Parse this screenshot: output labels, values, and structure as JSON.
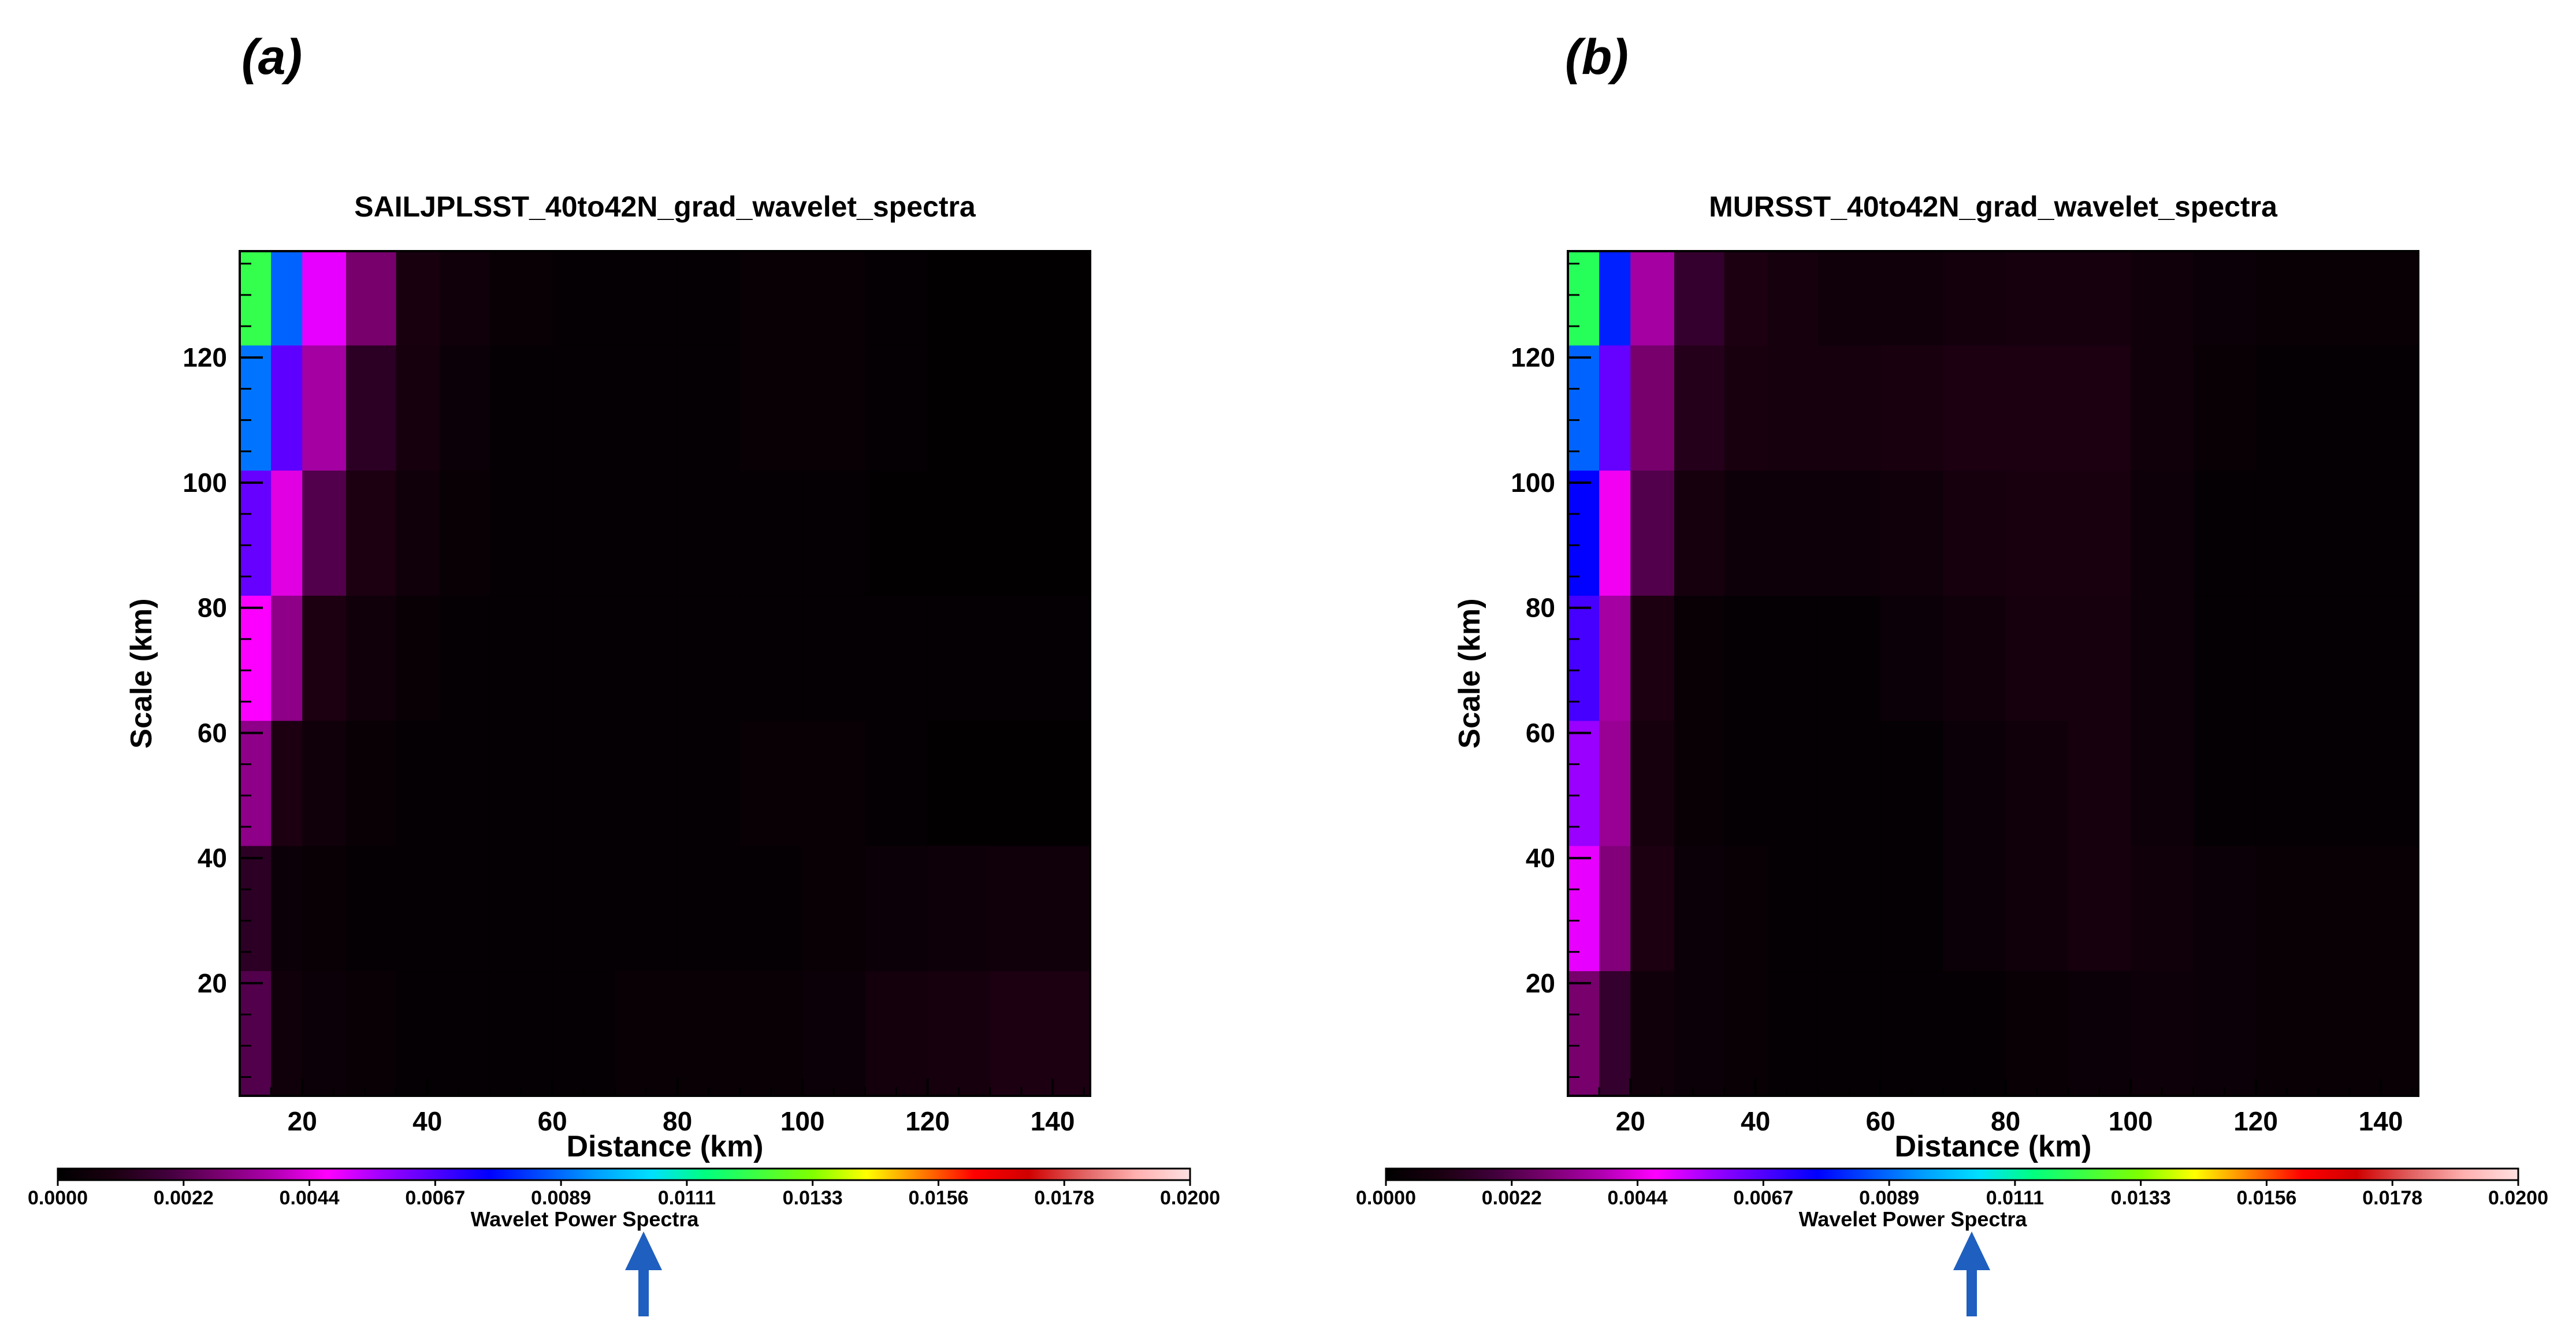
{
  "colorbar": {
    "stops": [
      "#000000",
      "#1a0010",
      "#40003a",
      "#7a0070",
      "#b000b0",
      "#ff00ff",
      "#a000ff",
      "#5000ff",
      "#0000ff",
      "#0050ff",
      "#00a0ff",
      "#00e0ff",
      "#00ff80",
      "#40ff40",
      "#80ff00",
      "#ffff00",
      "#ff8000",
      "#ff0000",
      "#d00000",
      "#e06060",
      "#ffb0b0",
      "#ffe0e0"
    ],
    "vmin": 0.0,
    "vmax": 0.02,
    "tick_labels": [
      "0.0000",
      "0.0022",
      "0.0044",
      "0.0067",
      "0.0089",
      "0.0111",
      "0.0133",
      "0.0156",
      "0.0178",
      "0.0200"
    ],
    "label": "Wavelet Power Spectra"
  },
  "arrow_color": "#1f5fbf",
  "chart_data": [
    {
      "panel_label": "(a)",
      "type": "heatmap",
      "title": "SAILJPLSST_40to42N_grad_wavelet_spectra",
      "xlabel": "Distance (km)",
      "ylabel": "Scale (km)",
      "xlim": [
        10,
        146
      ],
      "ylim": [
        2,
        137
      ],
      "xticks": [
        "20",
        "40",
        "60",
        "80",
        "100",
        "120",
        "140"
      ],
      "yticks": [
        "20",
        "40",
        "60",
        "80",
        "100",
        "120"
      ],
      "x_edges": [
        10,
        15,
        20,
        27,
        35,
        42,
        50,
        60,
        70,
        80,
        90,
        100,
        110,
        120,
        130,
        146
      ],
      "y_edges": [
        2,
        22,
        42,
        62,
        82,
        102,
        122,
        137
      ],
      "values": [
        [
          0.0022,
          0.0006,
          0.0004,
          0.0003,
          0.0002,
          0.0002,
          0.0002,
          0.0002,
          0.0003,
          0.0003,
          0.0003,
          0.0004,
          0.0007,
          0.0008,
          0.001
        ],
        [
          0.0014,
          0.0004,
          0.0003,
          0.0002,
          0.0002,
          0.0002,
          0.0002,
          0.0002,
          0.0002,
          0.0002,
          0.0002,
          0.0003,
          0.0004,
          0.0005,
          0.0006
        ],
        [
          0.0032,
          0.001,
          0.0006,
          0.0003,
          0.0002,
          0.0002,
          0.0002,
          0.0002,
          0.0002,
          0.0002,
          0.0003,
          0.0003,
          0.0002,
          0.0001,
          0.0001
        ],
        [
          0.0048,
          0.0032,
          0.001,
          0.0006,
          0.0003,
          0.0002,
          0.0002,
          0.0002,
          0.0002,
          0.0002,
          0.0002,
          0.0002,
          0.0002,
          0.0002,
          0.0002
        ],
        [
          0.0064,
          0.0044,
          0.0022,
          0.001,
          0.0006,
          0.0003,
          0.0002,
          0.0002,
          0.0002,
          0.0002,
          0.0002,
          0.0002,
          0.0001,
          0.0001,
          0.0001
        ],
        [
          0.009,
          0.0065,
          0.0036,
          0.0014,
          0.0008,
          0.0004,
          0.0002,
          0.0002,
          0.0002,
          0.0002,
          0.0003,
          0.0003,
          0.0002,
          0.0001,
          0.0001
        ],
        [
          0.0122,
          0.0088,
          0.005,
          0.0028,
          0.0009,
          0.0006,
          0.0003,
          0.0002,
          0.0002,
          0.0002,
          0.0003,
          0.0003,
          0.0002,
          0.0001,
          0.0001
        ]
      ]
    },
    {
      "panel_label": "(b)",
      "type": "heatmap",
      "title": "MURSST_40to42N_grad_wavelet_spectra",
      "xlabel": "Distance (km)",
      "ylabel": "Scale (km)",
      "xlim": [
        10,
        146
      ],
      "ylim": [
        2,
        137
      ],
      "xticks": [
        "20",
        "40",
        "60",
        "80",
        "100",
        "120",
        "140"
      ],
      "yticks": [
        "20",
        "40",
        "60",
        "80",
        "100",
        "120"
      ],
      "x_edges": [
        10,
        15,
        20,
        27,
        35,
        42,
        50,
        60,
        70,
        80,
        90,
        100,
        110,
        120,
        130,
        146
      ],
      "y_edges": [
        2,
        22,
        42,
        62,
        82,
        102,
        122,
        137
      ],
      "values": [
        [
          0.0028,
          0.0016,
          0.0006,
          0.0004,
          0.0003,
          0.0002,
          0.0002,
          0.0002,
          0.0002,
          0.0003,
          0.0004,
          0.0005,
          0.0004,
          0.0003,
          0.0003
        ],
        [
          0.005,
          0.003,
          0.001,
          0.0004,
          0.0003,
          0.0002,
          0.0002,
          0.0002,
          0.0004,
          0.0006,
          0.0008,
          0.0006,
          0.0004,
          0.0003,
          0.0003
        ],
        [
          0.0058,
          0.0034,
          0.0008,
          0.0003,
          0.0002,
          0.0002,
          0.0002,
          0.0002,
          0.0004,
          0.0006,
          0.0008,
          0.0005,
          0.0002,
          0.0002,
          0.0002
        ],
        [
          0.0068,
          0.0036,
          0.001,
          0.0003,
          0.0002,
          0.0002,
          0.0002,
          0.0004,
          0.0006,
          0.0008,
          0.0008,
          0.0005,
          0.0002,
          0.0002,
          0.0002
        ],
        [
          0.0076,
          0.0046,
          0.0022,
          0.0008,
          0.0005,
          0.0005,
          0.0005,
          0.0006,
          0.0008,
          0.0009,
          0.0009,
          0.0005,
          0.0002,
          0.0002,
          0.0002
        ],
        [
          0.0088,
          0.0064,
          0.0028,
          0.0012,
          0.0009,
          0.0008,
          0.0008,
          0.0009,
          0.001,
          0.001,
          0.001,
          0.0006,
          0.0003,
          0.0002,
          0.0002
        ],
        [
          0.012,
          0.008,
          0.0036,
          0.0016,
          0.001,
          0.0008,
          0.0006,
          0.0006,
          0.0007,
          0.0008,
          0.0008,
          0.0006,
          0.0004,
          0.0003,
          0.0003
        ]
      ]
    }
  ]
}
